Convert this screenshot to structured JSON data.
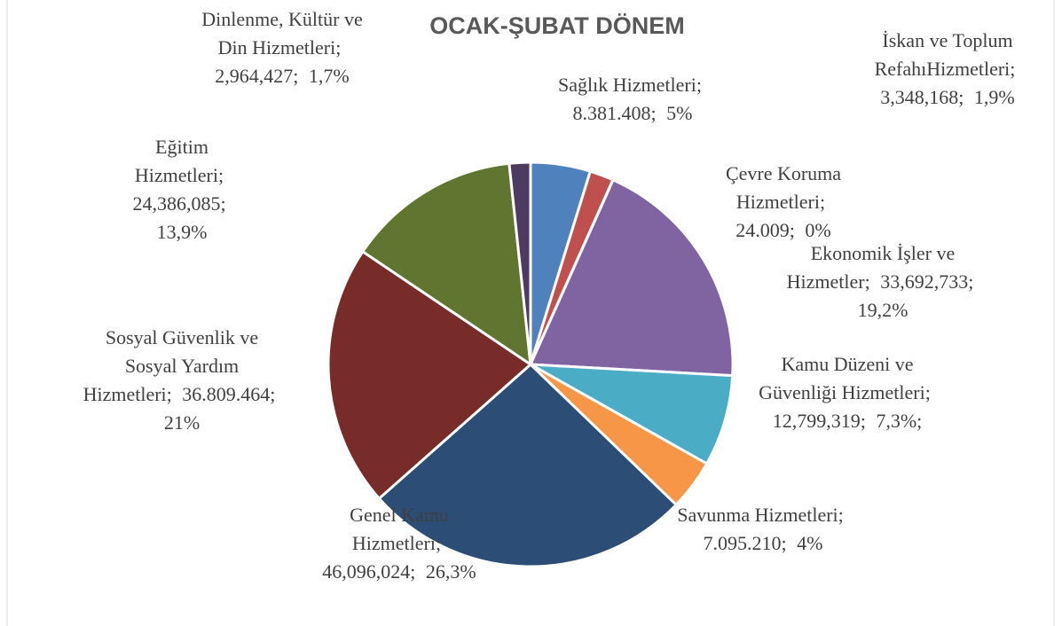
{
  "chart_data": {
    "type": "pie",
    "title": "OCAK-ŞUBAT DÖNEM",
    "categories": [
      "Sağlık Hizmetleri",
      "İskan ve Toplum RefahıHizmetleri",
      "Çevre Koruma Hizmetleri",
      "Ekonomik İşler ve Hizmetler",
      "Kamu Düzeni ve Güvenliği Hizmetleri",
      "Savunma Hizmetleri",
      "Genel Kamu Hizmetleri",
      "Sosyal Güvenlik ve Sosyal Yardım Hizmetleri",
      "Eğitim Hizmetleri",
      "Dinlenme, Kültür ve Din Hizmetleri"
    ],
    "values": [
      8381408,
      3348168,
      24009,
      33692733,
      12799319,
      7095210,
      46096024,
      36809464,
      24386085,
      2964427
    ],
    "value_labels": [
      "8.381.408",
      "3,348,168",
      "24.009",
      "33,692,733",
      "12,799,319",
      "7.095.210",
      "46,096,024",
      "36.809.464",
      "24,386,085",
      "2,964,427"
    ],
    "percents": [
      5,
      1.9,
      0,
      19.2,
      7.3,
      4,
      26.3,
      21,
      13.9,
      1.7
    ],
    "percent_labels": [
      "5%",
      "1,9%",
      "0%",
      "19,2%",
      "7,3%;",
      "4%",
      "26,3%",
      "21%",
      "13,9%",
      "1,7%"
    ],
    "separator": ";",
    "colors": [
      "#4f81bd",
      "#c0504d",
      "#9bbb59",
      "#8064a2",
      "#4bacc6",
      "#f79646",
      "#2c4d75",
      "#772c2a",
      "#5f7530",
      "#4d3b62"
    ]
  }
}
